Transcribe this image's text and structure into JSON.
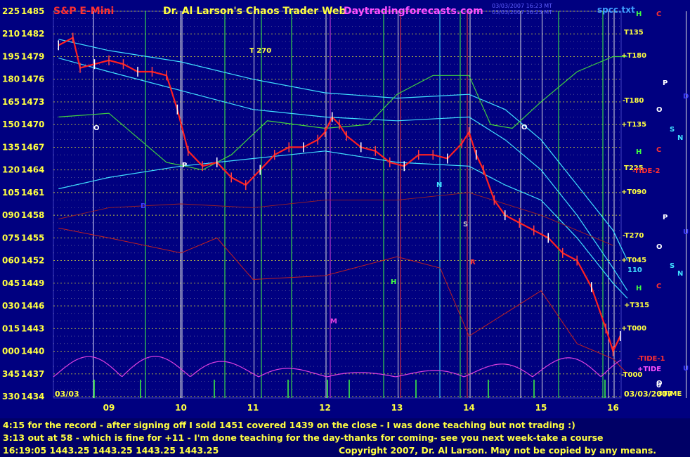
{
  "header": {
    "symbol": "S&P E-Mini",
    "title": "Dr. Al Larson's Chaos Trader Web",
    "site": "Daytradingforecasts.com",
    "stamp1": "03/03/2007 16:23 MT",
    "stamp2": "03/03/2007 16:23 MT",
    "ticker": "spcc.txt"
  },
  "footer": {
    "line1": "4:15 for the record - after signing off I sold 1451 covered 1439 on the close - I was done teaching but not trading :)",
    "line2": "3:13 out at 58 - which is fine for +11 - I'm done teaching for the day-thanks for coming- see you next week-take a course",
    "line3": "16:19:05  1443.25 1443.25 1443.25 1443.25",
    "copyright": "Copyright 2007, Dr. Al Larson. May not be copied by any means."
  },
  "colors": {
    "background": "#000080",
    "grid_yellow": "#c8c850",
    "price": "#ff2020",
    "cyan": "#40e0ff",
    "green": "#40d040",
    "magenta": "#e040e0",
    "white": "#ffffff"
  },
  "chart_data": {
    "type": "line",
    "title": "S&P E-Mini",
    "date_left": "03/03",
    "date_right": "03/03/2007",
    "y_axis_prices": [
      1485,
      1482,
      1479,
      1476,
      1473,
      1470,
      1467,
      1464,
      1461,
      1458,
      1455,
      1452,
      1449,
      1446,
      1443,
      1440,
      1437,
      1434
    ],
    "y_axis_codes": [
      "225",
      "210",
      "195",
      "180",
      "165",
      "150",
      "135",
      "120",
      "105",
      "090",
      "075",
      "060",
      "045",
      "030",
      "015",
      "000",
      "345",
      "330"
    ],
    "x_ticks": [
      "09",
      "10",
      "11",
      "12",
      "13",
      "14",
      "15",
      "16"
    ],
    "price_series": {
      "name": "",
      "x": [
        8.3,
        8.5,
        8.6,
        8.8,
        9.0,
        9.2,
        9.4,
        9.6,
        9.8,
        9.95,
        10.1,
        10.3,
        10.5,
        10.7,
        10.9,
        11.1,
        11.3,
        11.5,
        11.7,
        11.9,
        12.0,
        12.1,
        12.2,
        12.3,
        12.5,
        12.7,
        12.9,
        13.1,
        13.3,
        13.5,
        13.7,
        13.9,
        14.0,
        14.1,
        14.2,
        14.35,
        14.5,
        14.7,
        14.9,
        15.1,
        15.3,
        15.5,
        15.7,
        15.9,
        16.0,
        16.1
      ],
      "y": [
        1480.5,
        1481.5,
        1477.5,
        1478,
        1478.5,
        1478,
        1477,
        1477,
        1476.5,
        1472,
        1466.5,
        1464.5,
        1465,
        1463,
        1462,
        1464,
        1466,
        1467,
        1467,
        1468,
        1469,
        1471,
        1470,
        1468.5,
        1467,
        1466.5,
        1465,
        1464.5,
        1466,
        1466,
        1465.5,
        1467.5,
        1469,
        1466,
        1464,
        1460,
        1458,
        1457,
        1456,
        1455,
        1453,
        1452,
        1448.5,
        1443,
        1440,
        1442
      ]
    },
    "annotations_right": [
      "H",
      "C",
      "T135",
      "+T180",
      "P",
      "D",
      "-T180",
      "O",
      "+T135",
      "N",
      "S",
      "H",
      "C",
      "T225",
      "-TIDE-2",
      "+T090",
      "P",
      "U",
      "-T270",
      "O",
      "+T045",
      "N",
      "S",
      "110",
      "H",
      "C",
      "+T315",
      "+T000",
      "-TIDE-1",
      "+TIDE",
      "U",
      "-T000",
      "O",
      "0",
      "3TIME"
    ],
    "annotations_chart": [
      "T 270",
      "O",
      "P",
      "N",
      "S",
      "H",
      "M",
      "D",
      "O",
      "R"
    ]
  }
}
